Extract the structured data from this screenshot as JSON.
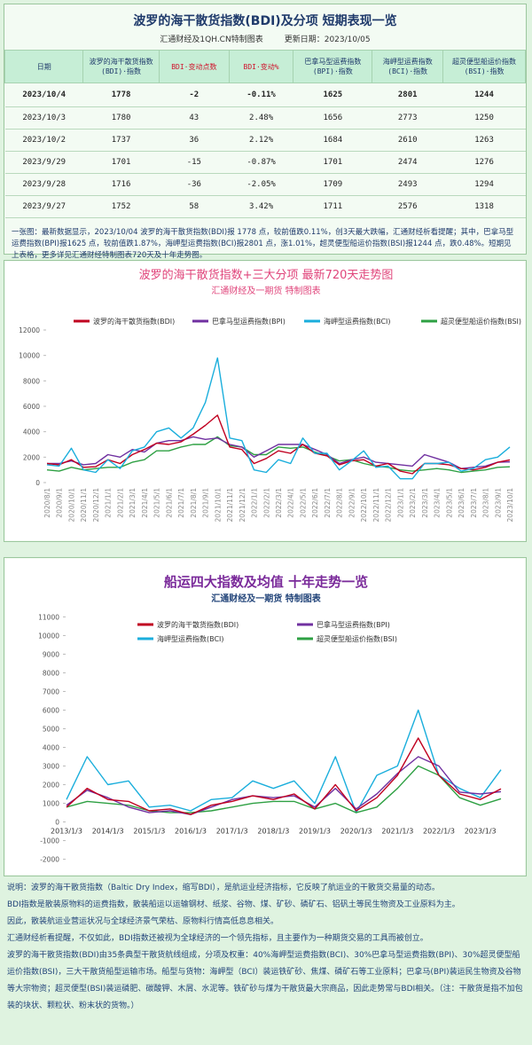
{
  "header": {
    "title": "波罗的海干散货指数(BDI)及分项  短期表现一览",
    "source": "汇通财经及1QH.CN特制图表",
    "updated": "更新日期：2023/10/05"
  },
  "table": {
    "columns": [
      "日期",
      "波罗的海干散货指数(BDI)·指数",
      "BDI·变动点数",
      "BDI·变动%",
      "巴拿马型运费指数(BPI)·指数",
      "海岬型运费指数(BCI)·指数",
      "超灵便型船运价指数(BSI)·指数"
    ],
    "rows": [
      [
        "2023/10/4",
        "1778",
        "-2",
        "-0.11%",
        "1625",
        "2801",
        "1244"
      ],
      [
        "2023/10/3",
        "1780",
        "43",
        "2.48%",
        "1656",
        "2773",
        "1250"
      ],
      [
        "2023/10/2",
        "1737",
        "36",
        "2.12%",
        "1684",
        "2610",
        "1263"
      ],
      [
        "2023/9/29",
        "1701",
        "-15",
        "-0.87%",
        "1701",
        "2474",
        "1276"
      ],
      [
        "2023/9/28",
        "1716",
        "-36",
        "-2.05%",
        "1709",
        "2493",
        "1294"
      ],
      [
        "2023/9/27",
        "1752",
        "58",
        "3.42%",
        "1711",
        "2576",
        "1318"
      ]
    ]
  },
  "summary": "一张图：最新数据显示，2023/10/04 波罗的海干散货指数(BDI)报 1778 点，较前值跌0.11%，创3天最大跌幅，汇通财经析看提醒；其中，巴拿马型运费指数(BPI)报1625 点，较前值跌1.87%，海岬型运费指数(BCI)报2801 点，涨1.01%，超灵便型船运价指数(BSI)报1244 点，跌0.48%。短期见上表格，更多详见汇通财经特制图表720天及十年走势图。",
  "chart_data": [
    {
      "type": "line",
      "title": "波罗的海干散货指数+三大分项  最新720天走势图",
      "subtitle": "汇通财经及一期货  特制图表",
      "categories": [
        "2020/8/1",
        "2020/9/1",
        "2020/10/1",
        "2020/11/1",
        "2020/12/1",
        "2021/1/1",
        "2021/2/1",
        "2021/3/1",
        "2021/4/1",
        "2021/5/1",
        "2021/6/1",
        "2021/7/1",
        "2021/8/1",
        "2021/9/1",
        "2021/10/1",
        "2021/11/1",
        "2021/12/1",
        "2022/1/1",
        "2022/2/1",
        "2022/3/1",
        "2022/4/1",
        "2022/5/1",
        "2022/6/1",
        "2022/7/1",
        "2022/8/1",
        "2022/9/1",
        "2022/10/1",
        "2022/11/1",
        "2022/12/1",
        "2023/1/1",
        "2023/2/1",
        "2023/3/1",
        "2023/4/1",
        "2023/5/1",
        "2023/6/1",
        "2023/7/1",
        "2023/8/1",
        "2023/9/1",
        "2023/10/1"
      ],
      "series": [
        {
          "name": "波罗的海干散货指数(BDI)",
          "color": "#c00020",
          "values": [
            1500,
            1400,
            1800,
            1200,
            1250,
            1800,
            1500,
            2200,
            2600,
            3100,
            3000,
            3200,
            3800,
            4500,
            5300,
            2800,
            2600,
            1500,
            1900,
            2500,
            2300,
            3000,
            2300,
            2100,
            1400,
            1700,
            1800,
            1300,
            1500,
            900,
            700,
            1500,
            1500,
            1400,
            1100,
            1000,
            1200,
            1600,
            1778
          ]
        },
        {
          "name": "巴拿马型运费指数(BPI)",
          "color": "#7030a0",
          "values": [
            1500,
            1500,
            1700,
            1400,
            1500,
            2200,
            2000,
            2600,
            2400,
            3100,
            3300,
            3300,
            3600,
            3400,
            3500,
            3000,
            2800,
            2000,
            2500,
            3000,
            3000,
            3000,
            2600,
            2200,
            1500,
            1800,
            2000,
            1600,
            1500,
            1400,
            1300,
            2200,
            1900,
            1600,
            1100,
            1200,
            1300,
            1600,
            1625
          ]
        },
        {
          "name": "海岬型运费指数(BCI)",
          "color": "#1aaedc",
          "values": [
            1400,
            1300,
            2700,
            1000,
            800,
            1800,
            1100,
            2500,
            2800,
            4000,
            4300,
            3500,
            4300,
            6300,
            9800,
            3500,
            3300,
            1000,
            800,
            1800,
            1500,
            3500,
            2300,
            2300,
            1000,
            1700,
            2500,
            1200,
            1300,
            300,
            300,
            1500,
            1500,
            1600,
            900,
            1100,
            1800,
            2000,
            2801
          ]
        },
        {
          "name": "超灵便型船运价指数(BSI)",
          "color": "#2ea043",
          "values": [
            1000,
            900,
            1200,
            1000,
            1100,
            1200,
            1200,
            1600,
            1800,
            2500,
            2500,
            2800,
            3000,
            3000,
            3600,
            2900,
            2800,
            2200,
            2200,
            2800,
            2700,
            2800,
            2400,
            2100,
            1700,
            1800,
            1500,
            1300,
            1200,
            1000,
            900,
            1000,
            1100,
            1000,
            800,
            900,
            1000,
            1200,
            1244
          ]
        }
      ],
      "ylim": [
        0,
        12000
      ],
      "yticks": [
        0,
        2000,
        4000,
        6000,
        8000,
        10000,
        12000
      ],
      "grid": false,
      "legend": "top"
    },
    {
      "type": "line",
      "title": "船运四大指数及均值 十年走势一览",
      "subtitle": "汇通财经及一期货 特制图表",
      "categories": [
        "2013/1/3",
        null,
        "2014/1/3",
        null,
        "2015/1/3",
        null,
        "2016/1/3",
        null,
        "2017/1/3",
        null,
        "2018/1/3",
        null,
        "2019/1/3",
        null,
        "2020/1/3",
        null,
        "2021/1/3",
        null,
        "2022/1/3",
        null,
        "2023/1/3",
        null
      ],
      "series": [
        {
          "name": "波罗的海干散货指数(BDI)",
          "color": "#c00020",
          "values": [
            800,
            1800,
            1200,
            1100,
            600,
            700,
            400,
            900,
            1100,
            1400,
            1200,
            1500,
            700,
            2000,
            600,
            1300,
            2500,
            4500,
            2500,
            1500,
            1200,
            1778
          ]
        },
        {
          "name": "巴拿马型运费指数(BPI)",
          "color": "#7030a0",
          "values": [
            900,
            1700,
            1300,
            800,
            500,
            600,
            400,
            800,
            1200,
            1400,
            1300,
            1400,
            800,
            1800,
            700,
            1500,
            2600,
            3500,
            3000,
            1600,
            1500,
            1625
          ]
        },
        {
          "name": "海岬型运费指数(BCI)",
          "color": "#1aaedc",
          "values": [
            1200,
            3500,
            2000,
            2200,
            800,
            900,
            600,
            1200,
            1300,
            2200,
            1800,
            2200,
            1000,
            3500,
            500,
            2500,
            3000,
            6000,
            2500,
            1800,
            1300,
            2801
          ]
        },
        {
          "name": "超灵便型船运价指数(BSI)",
          "color": "#2ea043",
          "values": [
            800,
            1100,
            1000,
            900,
            600,
            500,
            500,
            600,
            800,
            1000,
            1100,
            1100,
            700,
            1000,
            500,
            800,
            1800,
            3000,
            2500,
            1300,
            900,
            1244
          ]
        }
      ],
      "ylim": [
        -2400,
        11400
      ],
      "yticks": [
        -2000,
        -1000,
        0,
        1000,
        2000,
        3000,
        4000,
        5000,
        6000,
        7000,
        8000,
        9000,
        10000,
        11000
      ],
      "grid": false,
      "legend": "top"
    }
  ],
  "footer": {
    "paragraphs": [
      "说明：波罗的海干散货指数（Baltic Dry Index，缩写BDI），是航运业经济指标，它反映了航运业的干散货交易量的动态。",
      "BDI指数是散装原物料的运费指数，散装船运以运输钢材、纸浆、谷物、煤、矿砂、磷矿石、铝矾土等民生物资及工业原料为主。",
      "因此，散装航运业营运状况与全球经济景气荣枯、原物料行情高低息息相关。",
      "汇通财经析看提醒，不仅如此，BDI指数还被视为全球经济的一个领先指标，且主要作为一种期货交易的工具而被创立。",
      "波罗的海干散货指数(BDI)由35条典型干散货航线组成，分项及权重：40%海岬型运费指数(BCI)、30%巴拿马型运费指数(BPI)、30%超灵便型船运价指数(BSI)，三大干散货船型运输市场。船型与货物：海岬型（BCI）装运铁矿砂、焦煤、磷矿石等工业原料；巴拿马(BPI)装运民生物资及谷物等大宗物资；超灵便型(BSI)装运磷肥、碳酸钾、木屑、水泥等。铁矿砂与煤为干散货最大宗商品，因此走势常与BDI相关。（注：干散货是指不加包装的块状、颗粒状、粉末状的货物。）"
    ]
  }
}
